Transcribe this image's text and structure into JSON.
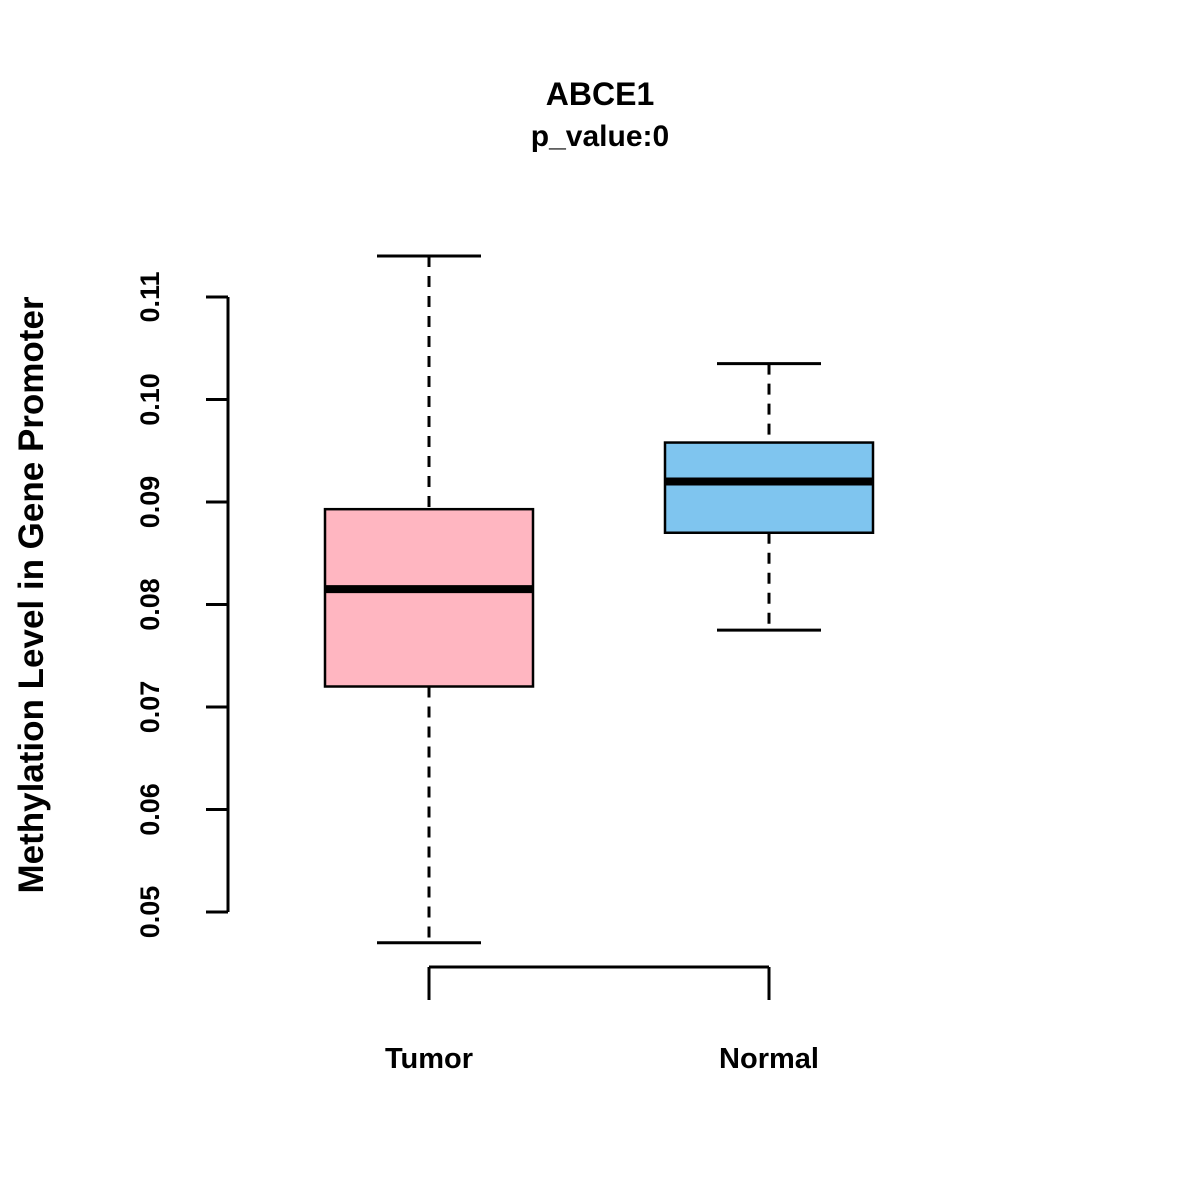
{
  "chart": {
    "title": "ABCE1",
    "subtitle": "p_value:0",
    "ylabel": "Methylation Level in Gene Promoter"
  },
  "chart_data": {
    "type": "boxplot",
    "title": "ABCE1",
    "subtitle": "p_value:0",
    "xlabel": "",
    "ylabel": "Methylation Level in Gene Promoter",
    "ylim": [
      0.047,
      0.114
    ],
    "ytick_labels": [
      "0.05",
      "0.06",
      "0.07",
      "0.08",
      "0.09",
      "0.10",
      "0.11"
    ],
    "legend": "none",
    "grid": "off",
    "groups": [
      {
        "label": "Tumor",
        "color": "#FFB6C1",
        "lower_whisker": 0.047,
        "q1": 0.072,
        "median": 0.0815,
        "q3": 0.0893,
        "upper_whisker": 0.114
      },
      {
        "label": "Normal",
        "color": "#7FC5EF",
        "lower_whisker": 0.0775,
        "q1": 0.087,
        "median": 0.092,
        "q3": 0.0958,
        "upper_whisker": 0.1035
      }
    ]
  }
}
